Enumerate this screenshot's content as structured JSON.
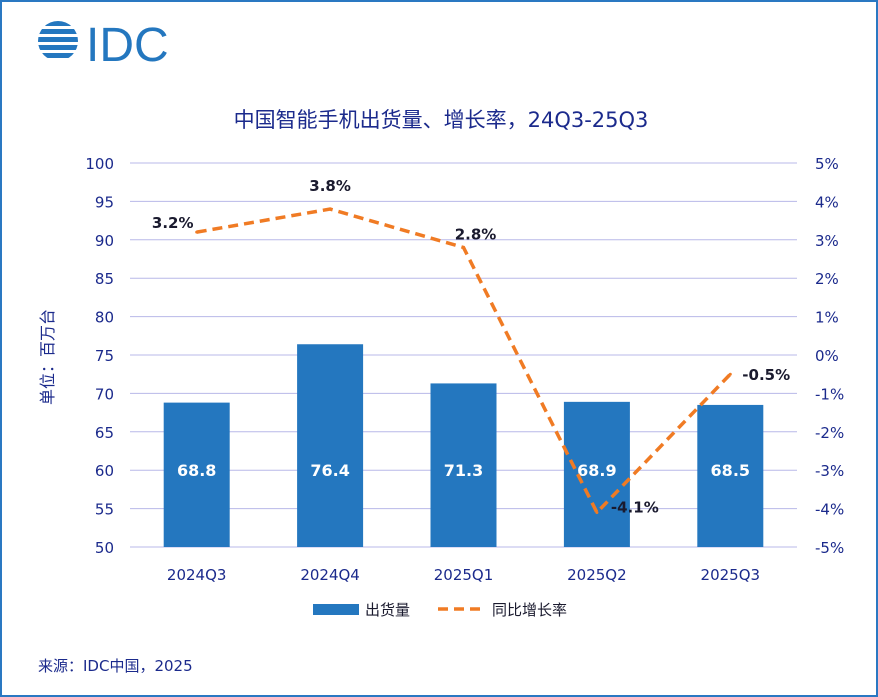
{
  "logo_text": "IDC",
  "colors": {
    "bar": "#2477bf",
    "line": "#f07b24",
    "grid": "#b8b8e8",
    "axis_text": "#1b2a8c",
    "border": "#2a78c2"
  },
  "source": "来源：IDC中国，2025",
  "chart_data": {
    "type": "bar+line",
    "title": "中国智能手机出货量、增长率，24Q3-25Q3",
    "ylabel": "单位：百万台",
    "categories": [
      "2024Q3",
      "2024Q4",
      "2025Q1",
      "2025Q2",
      "2025Q3"
    ],
    "ylim": [
      50,
      100
    ],
    "yticks": [
      50,
      55,
      60,
      65,
      70,
      75,
      80,
      85,
      90,
      95,
      100
    ],
    "y2lim": [
      -5,
      5
    ],
    "y2ticks": [
      "-5%",
      "-4%",
      "-3%",
      "-2%",
      "-1%",
      "0%",
      "1%",
      "2%",
      "3%",
      "4%",
      "5%"
    ],
    "grid": true,
    "legend_position": "bottom",
    "series": [
      {
        "name": "出货量",
        "type": "bar",
        "axis": "left",
        "values": [
          68.8,
          76.4,
          71.3,
          68.9,
          68.5
        ],
        "labels": [
          "68.8",
          "76.4",
          "71.3",
          "68.9",
          "68.5"
        ]
      },
      {
        "name": "同比增长率",
        "type": "line",
        "style": "dashed",
        "axis": "right",
        "values": [
          3.2,
          3.8,
          2.8,
          -4.1,
          -0.5
        ],
        "labels": [
          "3.2%",
          "3.8%",
          "2.8%",
          "-4.1%",
          "-0.5%"
        ]
      }
    ]
  }
}
